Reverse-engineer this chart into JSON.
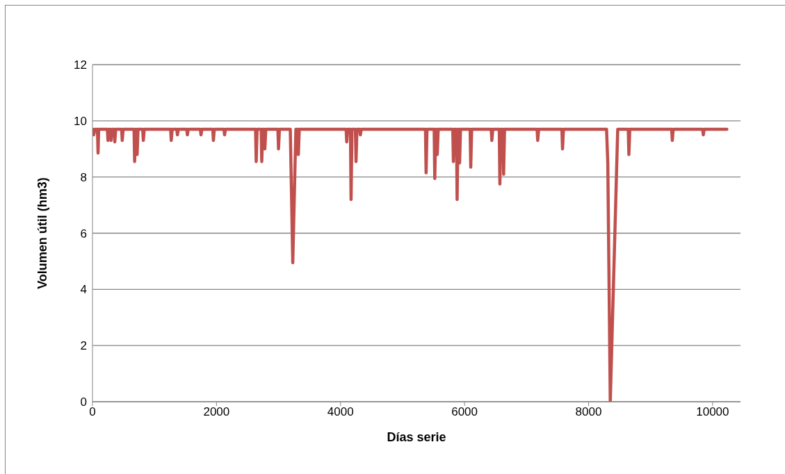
{
  "chart_data": {
    "type": "line",
    "xlabel": "Días serie",
    "ylabel": "Volumen útil (hm3)",
    "x": [
      0,
      10,
      20,
      40,
      80,
      90,
      100,
      240,
      250,
      265,
      290,
      300,
      315,
      350,
      360,
      375,
      470,
      480,
      495,
      670,
      680,
      695,
      710,
      720,
      735,
      810,
      820,
      835,
      1260,
      1270,
      1285,
      1360,
      1370,
      1385,
      1520,
      1530,
      1545,
      1740,
      1750,
      1765,
      1940,
      1950,
      1965,
      2120,
      2130,
      2145,
      2630,
      2640,
      2655,
      2720,
      2730,
      2745,
      2770,
      2780,
      2795,
      2990,
      3000,
      3015,
      3190,
      3230,
      3280,
      3310,
      3320,
      3335,
      4090,
      4100,
      4115,
      4160,
      4170,
      4185,
      4240,
      4250,
      4265,
      4310,
      4320,
      4335,
      5370,
      5380,
      5395,
      5510,
      5520,
      5535,
      5550,
      5560,
      5575,
      5810,
      5820,
      5835,
      5870,
      5880,
      5895,
      5910,
      5920,
      5935,
      6090,
      6100,
      6115,
      6430,
      6440,
      6455,
      6560,
      6570,
      6585,
      6620,
      6630,
      6645,
      7170,
      7180,
      7195,
      7570,
      7580,
      7595,
      8290,
      8310,
      8350,
      8470,
      8640,
      8650,
      8665,
      9340,
      9350,
      9365,
      9840,
      9850,
      9865,
      10230
    ],
    "series": [
      {
        "color": "#c0504d",
        "values": [
          9.7,
          9.7,
          9.5,
          9.7,
          9.7,
          8.85,
          9.7,
          9.7,
          9.3,
          9.7,
          9.7,
          9.3,
          9.7,
          9.7,
          9.25,
          9.7,
          9.7,
          9.3,
          9.7,
          9.7,
          8.55,
          9.7,
          9.7,
          8.8,
          9.7,
          9.7,
          9.3,
          9.7,
          9.7,
          9.3,
          9.7,
          9.7,
          9.5,
          9.7,
          9.7,
          9.5,
          9.7,
          9.7,
          9.5,
          9.7,
          9.7,
          9.3,
          9.7,
          9.7,
          9.5,
          9.7,
          9.7,
          8.55,
          9.7,
          9.7,
          8.55,
          9.7,
          9.7,
          9.0,
          9.7,
          9.7,
          9.0,
          9.7,
          9.7,
          4.95,
          9.7,
          9.7,
          8.8,
          9.7,
          9.7,
          9.25,
          9.7,
          9.7,
          7.2,
          9.7,
          9.7,
          8.55,
          9.7,
          9.7,
          9.5,
          9.7,
          9.7,
          8.15,
          9.7,
          9.7,
          7.95,
          9.7,
          9.7,
          8.8,
          9.7,
          9.7,
          8.55,
          9.7,
          9.7,
          7.2,
          9.7,
          9.7,
          8.5,
          9.7,
          9.7,
          8.35,
          9.7,
          9.7,
          9.3,
          9.7,
          9.7,
          7.75,
          9.7,
          9.7,
          8.1,
          9.7,
          9.7,
          9.3,
          9.7,
          9.7,
          9.0,
          9.7,
          9.7,
          8.5,
          0,
          9.7,
          9.7,
          8.8,
          9.7,
          9.7,
          9.3,
          9.7,
          9.7,
          9.5,
          9.7,
          9.7
        ]
      }
    ],
    "xlim": [
      0,
      10450
    ],
    "xticks": [
      0,
      2000,
      4000,
      6000,
      8000,
      10000
    ],
    "ylim": [
      0,
      12
    ],
    "yticks": [
      0,
      2,
      4,
      6,
      8,
      10,
      12
    ],
    "grid": "y",
    "legend": false,
    "marker": "none",
    "line_style": "solid"
  }
}
